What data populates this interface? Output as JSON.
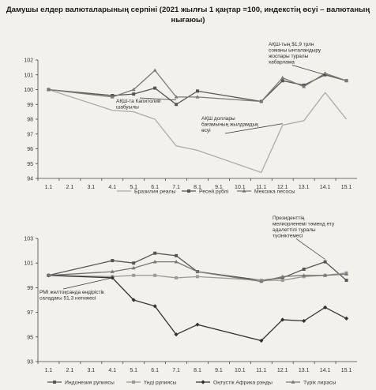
{
  "title": "Дамушы елдер валюталарының серпіні (2021 жылғы 1 қаңтар =100, индекстің өсуі – валютаның нығаюы)",
  "chart_data": [
    {
      "type": "line",
      "categories": [
        "1.1",
        "2.1",
        "3.1",
        "4.1",
        "5.1",
        "6.1",
        "7.1",
        "8.1",
        "9.1",
        "10.1",
        "11.1",
        "12.1",
        "13.1",
        "14.1",
        "15.1"
      ],
      "ylim": [
        94,
        102
      ],
      "yticks": [
        94,
        95,
        96,
        97,
        98,
        99,
        100,
        101,
        102
      ],
      "grid": false,
      "legend_position": "bottom",
      "series": [
        {
          "name": "Бразилия реалы",
          "color": "#aaaaaa",
          "marker": "none",
          "values": [
            100,
            null,
            null,
            98.6,
            98.5,
            98.0,
            96.2,
            95.9,
            null,
            null,
            94.4,
            97.6,
            97.9,
            99.8,
            98.0
          ]
        },
        {
          "name": "Ресей рублі",
          "color": "#555555",
          "marker": "square",
          "values": [
            100,
            null,
            null,
            99.6,
            99.7,
            100.1,
            99.0,
            99.9,
            null,
            null,
            99.2,
            100.6,
            100.3,
            101.0,
            100.6
          ]
        },
        {
          "name": "Мексика песосы",
          "color": "#7a7a7a",
          "marker": "triangle",
          "values": [
            100,
            null,
            null,
            99.5,
            100.0,
            101.3,
            99.5,
            99.5,
            null,
            null,
            99.2,
            100.8,
            100.2,
            101.1,
            100.6
          ]
        }
      ],
      "annotations": [
        {
          "lines": [
            "АҚШ-тың $1,9 трлн",
            "соманы ынталандыру",
            "жоспары туралы",
            "хабарлама"
          ],
          "category": "14.1",
          "value": 101.0
        },
        {
          "lines": [
            "АҚШ-та Капитолий",
            "шабуылы"
          ],
          "category": "7.1",
          "value": 99.3
        },
        {
          "lines": [
            "АҚШ доллары",
            "бағамының жылдамдық",
            "өсуі"
          ],
          "category": "12.1",
          "value": 97.7
        }
      ]
    },
    {
      "type": "line",
      "categories": [
        "1.1",
        "2.1",
        "3.1",
        "4.1",
        "5.1",
        "6.1",
        "7.1",
        "8.1",
        "9.1",
        "10.1",
        "11.1",
        "12.1",
        "13.1",
        "14.1",
        "15.1"
      ],
      "ylim": [
        93,
        103
      ],
      "yticks": [
        93,
        95,
        97,
        99,
        101,
        103
      ],
      "grid": false,
      "legend_position": "bottom",
      "series": [
        {
          "name": "Индонезия рупиясы",
          "color": "#555555",
          "marker": "square",
          "values": [
            100,
            null,
            null,
            101.2,
            101.0,
            101.8,
            101.6,
            100.3,
            null,
            null,
            99.6,
            99.8,
            100.5,
            101.1,
            99.6
          ]
        },
        {
          "name": "Үнді рупиясы",
          "color": "#9a9a9a",
          "marker": "square",
          "values": [
            100,
            null,
            null,
            99.9,
            100.0,
            100.0,
            99.8,
            99.9,
            null,
            null,
            99.6,
            99.6,
            99.9,
            100.0,
            100.2
          ]
        },
        {
          "name": "Оңтүстік Африка рэнды",
          "color": "#333333",
          "marker": "diamond",
          "values": [
            100,
            null,
            null,
            99.8,
            98.0,
            97.5,
            95.2,
            96.0,
            null,
            null,
            94.7,
            96.4,
            96.3,
            97.4,
            96.5
          ]
        },
        {
          "name": "Түрік лирасы",
          "color": "#777777",
          "marker": "triangle",
          "values": [
            100,
            null,
            null,
            100.3,
            100.6,
            101.1,
            101.1,
            100.3,
            null,
            null,
            99.5,
            99.9,
            100.0,
            100.0,
            100.1
          ]
        }
      ],
      "annotations": [
        {
          "lines": [
            "Президенттің",
            "мелиорленемі тәменд ету",
            "әдәлеттілі туралы",
            "түсініктемесі"
          ],
          "category": "14.1",
          "value": 101.3
        },
        {
          "lines": [
            "РМІ желтоқсанда өндірістік",
            "саладағы 51,3 нәтижесі"
          ],
          "category": "4.1",
          "value": 99.8
        }
      ]
    }
  ]
}
